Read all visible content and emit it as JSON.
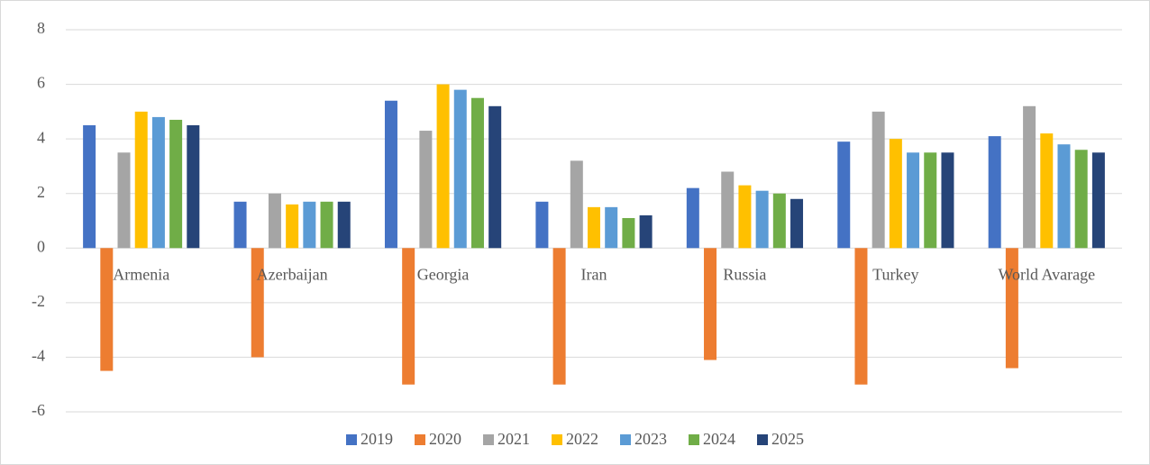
{
  "chart_data": {
    "type": "bar",
    "categories": [
      "Armenia",
      "Azerbaijan",
      "Georgia",
      "Iran",
      "Russia",
      "Turkey",
      "World Avarage"
    ],
    "series": [
      {
        "name": "2019",
        "color": "#4472c4",
        "values": [
          4.5,
          1.7,
          5.4,
          1.7,
          2.2,
          3.9,
          4.1
        ]
      },
      {
        "name": "2020",
        "color": "#ed7d31",
        "values": [
          -4.5,
          -4.0,
          -5.0,
          -5.0,
          -4.1,
          -5.0,
          -4.4
        ]
      },
      {
        "name": "2021",
        "color": "#a5a5a5",
        "values": [
          3.5,
          2.0,
          4.3,
          3.2,
          2.8,
          5.0,
          5.2
        ]
      },
      {
        "name": "2022",
        "color": "#ffc000",
        "values": [
          5.0,
          1.6,
          6.0,
          1.5,
          2.3,
          4.0,
          4.2
        ]
      },
      {
        "name": "2023",
        "color": "#5b9bd5",
        "values": [
          4.8,
          1.7,
          5.8,
          1.5,
          2.1,
          3.5,
          3.8
        ]
      },
      {
        "name": "2024",
        "color": "#70ad47",
        "values": [
          4.7,
          1.7,
          5.5,
          1.1,
          2.0,
          3.5,
          3.6
        ]
      },
      {
        "name": "2025",
        "color": "#264478",
        "values": [
          4.5,
          1.7,
          5.2,
          1.2,
          1.8,
          3.5,
          3.5
        ]
      }
    ],
    "ylim": [
      -6,
      8
    ],
    "yticks": [
      -6,
      -4,
      -2,
      0,
      2,
      4,
      6,
      8
    ],
    "grid": true,
    "legend": "bottom"
  }
}
